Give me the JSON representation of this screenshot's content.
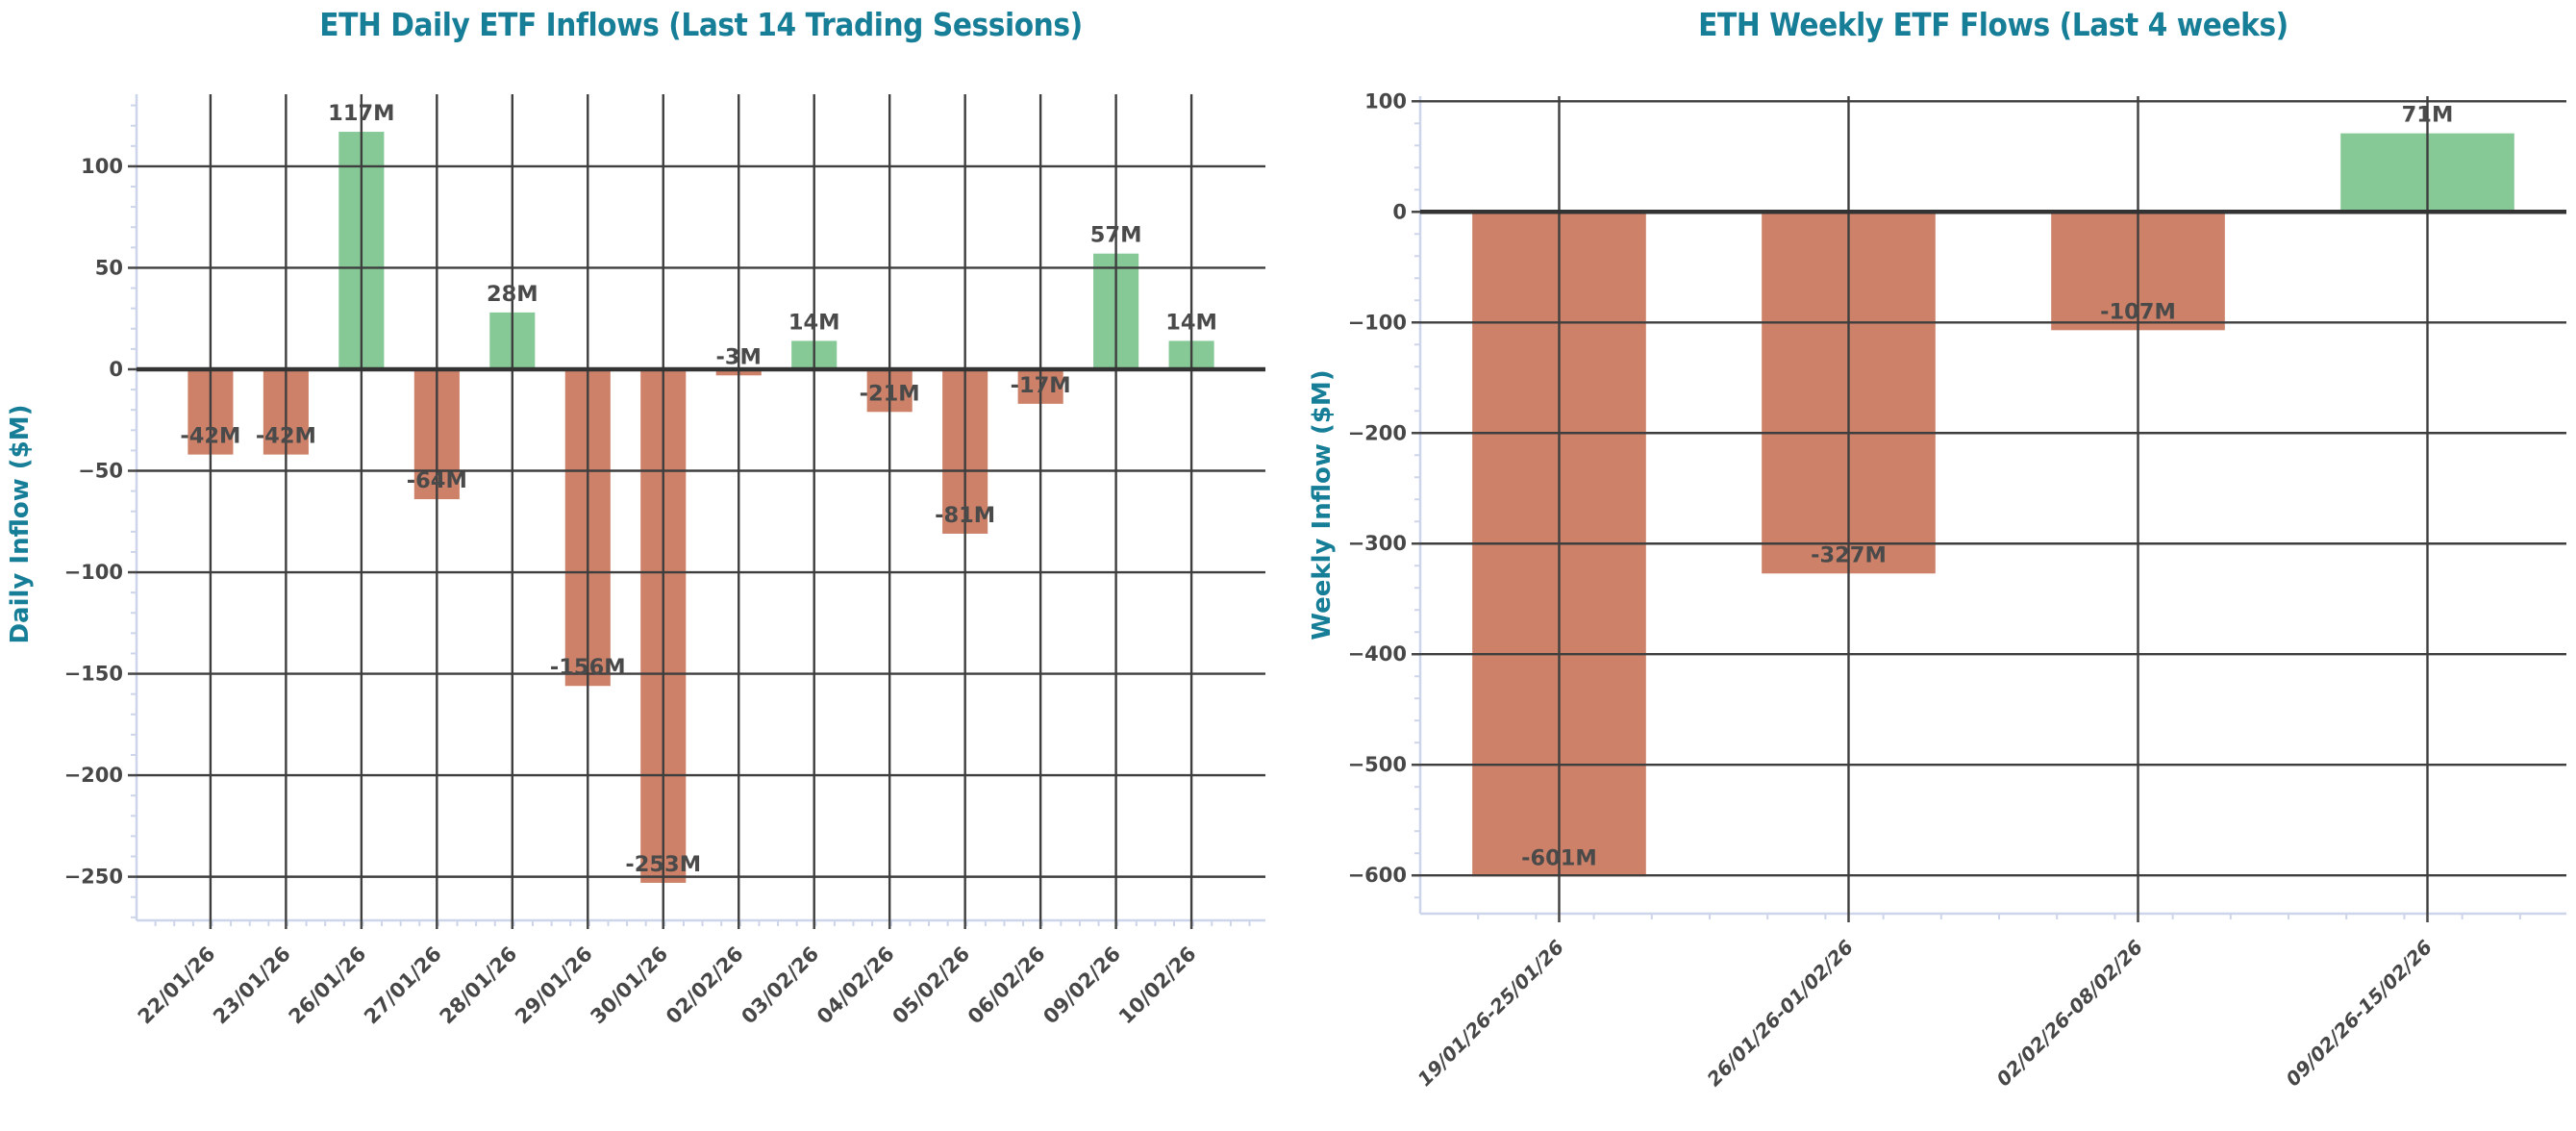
{
  "page": {
    "background": "#ffffff"
  },
  "colors": {
    "title_teal": "#177E98",
    "positive_green": "#86C997",
    "negative_salmon": "#CC8168",
    "grid": "#3E3E3E",
    "zero_line": "#333333",
    "spine": "#CDD5EA",
    "tick_text": "#474747",
    "bar_label_text": "#4A4A4A"
  },
  "chart_data": [
    {
      "type": "bar",
      "title": "ETH Daily ETF Inflows (Last 14 Trading Sessions)",
      "ylabel": "Daily Inflow ($M)",
      "xlabel": "",
      "categories": [
        "22/01/26",
        "23/01/26",
        "26/01/26",
        "27/01/26",
        "28/01/26",
        "29/01/26",
        "30/01/26",
        "02/02/26",
        "03/02/26",
        "04/02/26",
        "05/02/26",
        "06/02/26",
        "09/02/26",
        "10/02/26"
      ],
      "values": [
        -42,
        -42,
        117,
        -64,
        28,
        -156,
        -253,
        -3,
        14,
        -21,
        -81,
        -17,
        57,
        14
      ],
      "bar_labels": [
        "-42M",
        "-42M",
        "117M",
        "-64M",
        "28M",
        "-156M",
        "-253M",
        "-3M",
        "14M",
        "-21M",
        "-81M",
        "-17M",
        "57M",
        "14M"
      ],
      "yticks": [
        100,
        50,
        0,
        -50,
        -100,
        -150,
        -200,
        -250
      ],
      "ylim": [
        -271.5,
        135.5
      ],
      "grid": true,
      "legend": false
    },
    {
      "type": "bar",
      "title": "ETH Weekly ETF Flows (Last 4 weeks)",
      "ylabel": "Weekly Inflow ($M)",
      "xlabel": "",
      "categories": [
        "19/01/26-25/01/26",
        "26/01/26-01/02/26",
        "02/02/26-08/02/26",
        "09/02/26-15/02/26"
      ],
      "values": [
        -601,
        -327,
        -107,
        71
      ],
      "bar_labels": [
        "-601M",
        "-327M",
        "-107M",
        "71M"
      ],
      "yticks": [
        100,
        0,
        -100,
        -200,
        -300,
        -400,
        -500,
        -600
      ],
      "ylim": [
        -634.6,
        104.6
      ],
      "grid": true,
      "legend": false
    }
  ]
}
